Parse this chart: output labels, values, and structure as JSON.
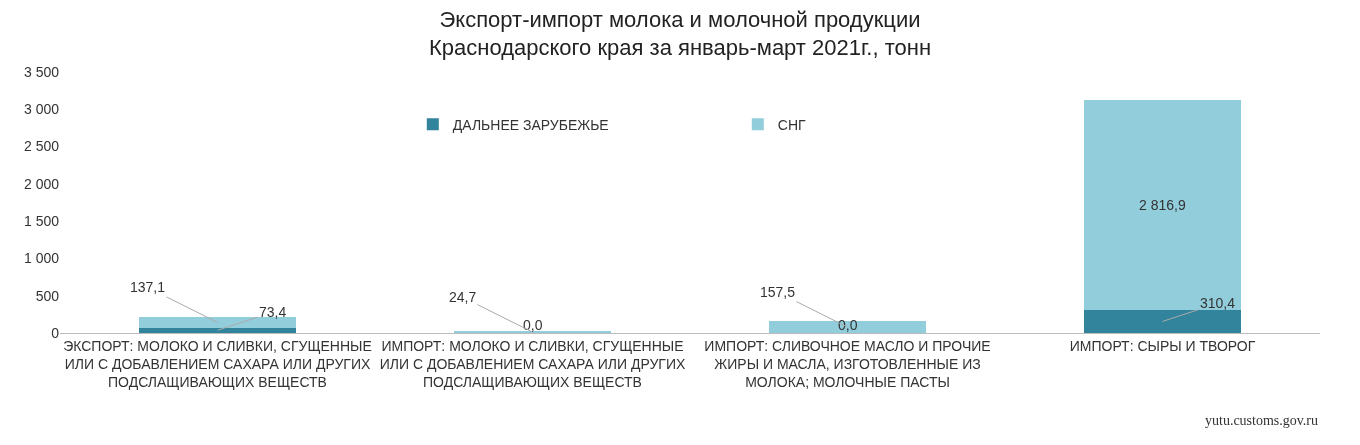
{
  "chart_data": {
    "type": "bar",
    "stacked": true,
    "title": "Экспорт-импорт молока и молочной продукции Краснодарского края за январь-март 2021г., тонн",
    "categories": [
      "ЭКСПОРТ: МОЛОКО И СЛИВКИ, СГУЩЕННЫЕ ИЛИ С ДОБАВЛЕНИЕМ САХАРА ИЛИ ДРУГИХ ПОДСЛАЩИВАЮЩИХ ВЕЩЕСТВ",
      "ИМПОРТ: МОЛОКО И СЛИВКИ, СГУЩЕННЫЕ ИЛИ С ДОБАВЛЕНИЕМ САХАРА ИЛИ ДРУГИХ ПОДСЛАЩИВАЮЩИХ ВЕЩЕСТВ",
      "ИМПОРТ: СЛИВОЧНОЕ МАСЛО И ПРОЧИЕ ЖИРЫ И МАСЛА, ИЗГОТОВЛЕННЫЕ ИЗ МОЛОКА; МОЛОЧНЫЕ ПАСТЫ",
      "ИМПОРТ: СЫРЫ И ТВОРОГ"
    ],
    "series": [
      {
        "name": "ДАЛЬНЕЕ ЗАРУБЕЖЬЕ",
        "color": "#31849b",
        "values": [
          73.4,
          0.0,
          0.0,
          310.4
        ],
        "value_labels": [
          "73,4",
          "0,0",
          "0,0",
          "310,4"
        ]
      },
      {
        "name": "СНГ",
        "color": "#92cddc",
        "values": [
          137.1,
          24.7,
          157.5,
          2816.9
        ],
        "value_labels": [
          "137,1",
          "24,7",
          "157,5",
          "2 816,9"
        ]
      }
    ],
    "ylim": [
      0,
      3500
    ],
    "yticks": [
      {
        "value": 0,
        "label": "0"
      },
      {
        "value": 500,
        "label": "500"
      },
      {
        "value": 1000,
        "label": "1 000"
      },
      {
        "value": 1500,
        "label": "1 500"
      },
      {
        "value": 2000,
        "label": "2 000"
      },
      {
        "value": 2500,
        "label": "2 500"
      },
      {
        "value": 3000,
        "label": "3 000"
      },
      {
        "value": 3500,
        "label": "3 500"
      }
    ],
    "grid": false,
    "legend": "top",
    "annotations": [
      "yutu.customs.gov.ru"
    ]
  }
}
